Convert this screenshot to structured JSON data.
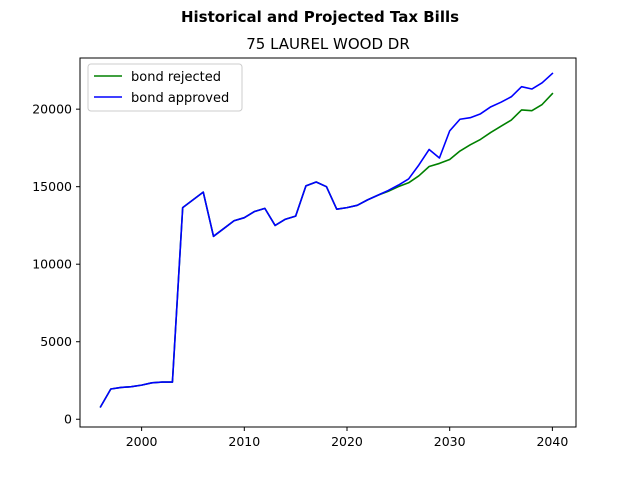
{
  "chart_data": {
    "type": "line",
    "suptitle": "Historical and Projected Tax Bills",
    "title": "75 LAUREL WOOD DR",
    "xlabel": "",
    "ylabel": "",
    "xlim": [
      1994,
      2042.3
    ],
    "ylim": [
      -500,
      23300
    ],
    "xticks": [
      2000,
      2010,
      2020,
      2030,
      2040
    ],
    "yticks": [
      0,
      5000,
      10000,
      15000,
      20000
    ],
    "grid": false,
    "legend_position": "upper-left",
    "series": [
      {
        "name": "bond rejected",
        "color": "#008000",
        "x": [
          1996,
          1997,
          1998,
          1999,
          2000,
          2001,
          2002,
          2003,
          2004,
          2005,
          2006,
          2007,
          2008,
          2009,
          2010,
          2011,
          2012,
          2013,
          2014,
          2015,
          2016,
          2017,
          2018,
          2019,
          2020,
          2021,
          2022,
          2023,
          2024,
          2025,
          2026,
          2027,
          2028,
          2029,
          2030,
          2031,
          2032,
          2033,
          2034,
          2035,
          2036,
          2037,
          2038,
          2039,
          2040
        ],
        "y": [
          800,
          1950,
          2050,
          2100,
          2200,
          2350,
          2400,
          2400,
          13650,
          14150,
          14650,
          11800,
          12300,
          12800,
          13000,
          13400,
          13600,
          12500,
          12900,
          13100,
          15050,
          15300,
          15000,
          13550,
          13650,
          13800,
          14150,
          14450,
          14700,
          15000,
          15250,
          15700,
          16300,
          16500,
          16750,
          17300,
          17700,
          18050,
          18500,
          18900,
          19300,
          19950,
          19900,
          20300,
          21000
        ]
      },
      {
        "name": "bond approved",
        "color": "#0000ff",
        "x": [
          1996,
          1997,
          1998,
          1999,
          2000,
          2001,
          2002,
          2003,
          2004,
          2005,
          2006,
          2007,
          2008,
          2009,
          2010,
          2011,
          2012,
          2013,
          2014,
          2015,
          2016,
          2017,
          2018,
          2019,
          2020,
          2021,
          2022,
          2023,
          2024,
          2025,
          2026,
          2027,
          2028,
          2029,
          2030,
          2031,
          2032,
          2033,
          2034,
          2035,
          2036,
          2037,
          2038,
          2039,
          2040
        ],
        "y": [
          800,
          1950,
          2050,
          2100,
          2200,
          2350,
          2400,
          2400,
          13650,
          14150,
          14650,
          11800,
          12300,
          12800,
          13000,
          13400,
          13600,
          12500,
          12900,
          13100,
          15050,
          15300,
          15000,
          13550,
          13650,
          13800,
          14150,
          14450,
          14750,
          15100,
          15500,
          16400,
          17400,
          16850,
          18600,
          19350,
          19450,
          19700,
          20150,
          20450,
          20800,
          21450,
          21300,
          21700,
          22300
        ]
      }
    ]
  }
}
